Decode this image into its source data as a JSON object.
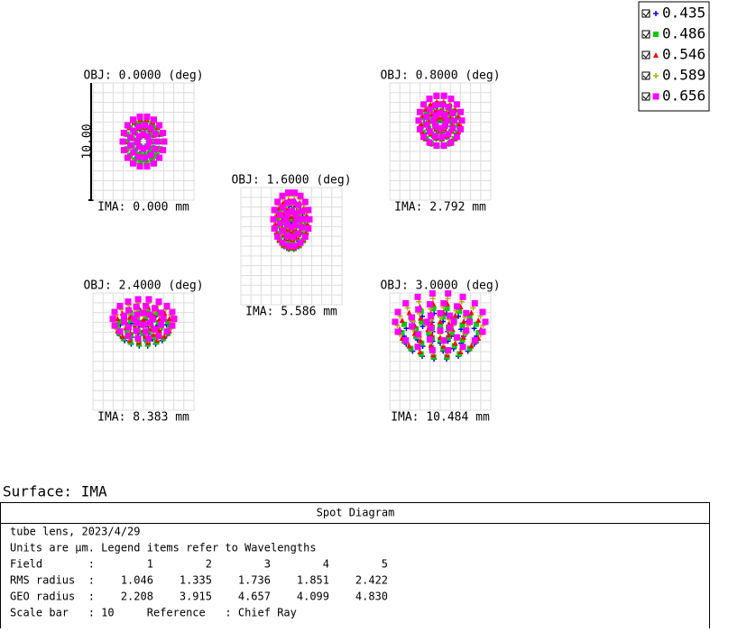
{
  "legend": [
    {
      "label": "0.435",
      "color": "#0000ff"
    },
    {
      "label": "0.486",
      "color": "#00cc00"
    },
    {
      "label": "0.546",
      "color": "#ff0000"
    },
    {
      "label": "0.589",
      "color": "#b0b000"
    },
    {
      "label": "0.656",
      "color": "#ff00ff"
    }
  ],
  "scale_bar_label": "10.00",
  "fields": [
    {
      "obj": "OBJ: 0.0000 (deg)",
      "ima": "IMA: 0.000 mm"
    },
    {
      "obj": "OBJ: 0.8000 (deg)",
      "ima": "IMA: 2.792 mm"
    },
    {
      "obj": "OBJ: 1.6000 (deg)",
      "ima": "IMA: 5.586 mm"
    },
    {
      "obj": "OBJ: 2.4000 (deg)",
      "ima": "IMA: 8.383 mm"
    },
    {
      "obj": "OBJ: 3.0000 (deg)",
      "ima": "IMA: 10.484 mm"
    }
  ],
  "surface": "Surface: IMA",
  "panel": {
    "title": "Spot Diagram",
    "lines": [
      "tube lens, 2023/4/29",
      "Units are µm. Legend items refer to Wavelengths",
      "Field       :        1        2        3        4        5",
      "RMS radius  :    1.046    1.335    1.736    1.851    2.422",
      "GEO radius  :    2.208    3.915    4.657    4.099    4.830",
      "Scale bar   : 10     Reference   : Chief Ray"
    ]
  }
}
